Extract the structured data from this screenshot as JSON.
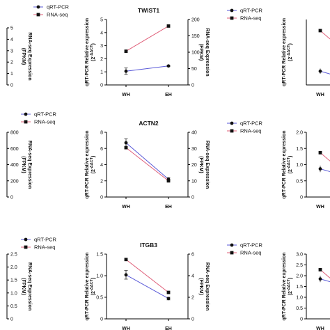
{
  "colors": {
    "qrt": "#5a5ad8",
    "rna": "#e0607a",
    "axis": "#000000",
    "marker": "#111111"
  },
  "chart_data": [
    {
      "type": "line",
      "title": "TWIST1",
      "categories": [
        "WH",
        "EH"
      ],
      "legend": {
        "qrt": "qRT-PCR",
        "rna": "RNA-seq"
      },
      "left_axis": {
        "label": "qRT-PCR Relative expression",
        "sublabel": "(2^-ΔΔCT)",
        "ylim": [
          0,
          5
        ],
        "ticks": [
          "0",
          "1",
          "2",
          "3",
          "4",
          "5"
        ]
      },
      "right_axis": {
        "label": "RNA-seq Expression",
        "sublabel": "(FPKM)",
        "ylim": [
          0,
          200
        ],
        "ticks": [
          "0",
          "50",
          "100",
          "150",
          "200"
        ]
      },
      "series": [
        {
          "name": "qRT-PCR",
          "axis": "left",
          "values": [
            1.05,
            1.45
          ],
          "err": [
            0.25,
            0.05
          ]
        },
        {
          "name": "RNA-seq",
          "axis": "right",
          "values": [
            103,
            180
          ]
        }
      ]
    },
    {
      "type": "line",
      "title": "ACTN2",
      "categories": [
        "WH",
        "EH"
      ],
      "legend": {
        "qrt": "qRT-PCR",
        "rna": "RNA-seq"
      },
      "left_axis": {
        "label": "qRT-PCR Relative expression",
        "sublabel": "(2^-ΔΔCT)",
        "ylim": [
          0,
          8
        ],
        "ticks": [
          "0",
          "2",
          "4",
          "6",
          "8"
        ]
      },
      "right_axis": {
        "label": "RNA-seq Expression",
        "sublabel": "(FPKM)",
        "ylim": [
          0,
          40
        ],
        "ticks": [
          "0",
          "10",
          "20",
          "30",
          "40"
        ]
      },
      "series": [
        {
          "name": "qRT-PCR",
          "axis": "left",
          "values": [
            6.7,
            2.2
          ],
          "err": [
            0.5,
            0.2
          ]
        },
        {
          "name": "RNA-seq",
          "axis": "right",
          "values": [
            30.5,
            10
          ]
        }
      ]
    },
    {
      "type": "line",
      "title": "ITGB3",
      "categories": [
        "WH",
        "EH"
      ],
      "legend": {
        "qrt": "qRT-PCR",
        "rna": "RNA-seq"
      },
      "left_axis": {
        "label": "qRT-PCR Relative expression",
        "sublabel": "(2^-ΔΔCT)",
        "ylim": [
          0,
          1.5
        ],
        "ticks": [
          "0",
          "0.5",
          "1.0",
          "1.5"
        ]
      },
      "right_axis": {
        "label": "RNA-seq Expression",
        "sublabel": "(FPKM)",
        "ylim": [
          0,
          6
        ],
        "ticks": [
          "0",
          "2",
          "4",
          "6"
        ]
      },
      "series": [
        {
          "name": "qRT-PCR",
          "axis": "left",
          "values": [
            1.02,
            0.47
          ],
          "err": [
            0.1,
            0.03
          ]
        },
        {
          "name": "RNA-seq",
          "axis": "right",
          "values": [
            5.5,
            2.45
          ]
        }
      ]
    },
    {
      "type": "line",
      "title": "",
      "partial": "left-cut",
      "categories": [],
      "legend": {
        "qrt": "",
        "rna": ""
      },
      "right_axis": {
        "label": "RNA-seq Expression",
        "sublabel": "(FPKM)",
        "ylim": [
          0,
          5
        ],
        "ticks": [
          "0",
          "1",
          "2",
          "3",
          "4",
          "5"
        ]
      },
      "series": []
    },
    {
      "type": "line",
      "title": "",
      "partial": "left-cut",
      "categories": [],
      "legend": {
        "qrt": "qRT-PCR",
        "rna": "RNA-seq"
      },
      "right_axis": {
        "label": "RNA-seq Expression",
        "sublabel": "(FPKM)",
        "ylim": [
          0,
          800
        ],
        "ticks": [
          "0",
          "200",
          "400",
          "600",
          "800"
        ]
      },
      "series": []
    },
    {
      "type": "line",
      "title": "",
      "partial": "left-cut",
      "categories": [],
      "legend": {
        "qrt": "",
        "rna": ""
      },
      "right_axis": {
        "label": "RNA-seq Expression",
        "sublabel": "(FPKM)",
        "ylim": [
          0,
          2.5
        ],
        "ticks": [
          "0",
          "0.5",
          "1.0",
          "1.5",
          "2.0",
          "2.5"
        ]
      },
      "series": []
    },
    {
      "type": "line",
      "title": "",
      "partial": "right-cut",
      "categories": [
        "WH"
      ],
      "legend": {
        "qrt": "qRT-PCR",
        "rna": "RNA-seq"
      },
      "left_axis": {
        "label": "qRT-PCR Relative expression",
        "sublabel": "(2^-ΔΔCT)",
        "ylim": [
          0,
          5
        ],
        "ticks": [
          "0",
          "1",
          "2",
          "3",
          "4",
          "5"
        ]
      },
      "series": [
        {
          "name": "qRT-PCR",
          "axis": "left",
          "values": [
            1.05
          ],
          "err": [
            0.2
          ]
        },
        {
          "name": "RNA-seq",
          "axis": "left",
          "values": [
            4.15
          ]
        }
      ]
    },
    {
      "type": "line",
      "title": "",
      "partial": "right-cut",
      "categories": [
        "WH"
      ],
      "legend": {
        "qrt": "qRT-PCR",
        "rna": "RNA-seq"
      },
      "left_axis": {
        "label": "qRT-PCR Relative expression",
        "sublabel": "(2^-ΔΔCT)",
        "ylim": [
          0,
          2.0
        ],
        "ticks": [
          "0",
          "0.5",
          "1.0",
          "1.5",
          "2.0"
        ]
      },
      "series": [
        {
          "name": "qRT-PCR",
          "axis": "left",
          "values": [
            0.87
          ],
          "err": [
            0.1
          ]
        },
        {
          "name": "RNA-seq",
          "axis": "left",
          "values": [
            1.37
          ]
        }
      ]
    },
    {
      "type": "line",
      "title": "",
      "partial": "right-cut",
      "categories": [
        "WH"
      ],
      "legend": {
        "qrt": "qRT-PCR",
        "rna": "RNA-seq"
      },
      "left_axis": {
        "label": "qRT-PCR Relative expression",
        "sublabel": "(2^-ΔΔCT)",
        "ylim": [
          0,
          3.0
        ],
        "ticks": [
          "0",
          "0.5",
          "1.0",
          "1.5",
          "2.0",
          "2.5",
          "3.0"
        ]
      },
      "series": [
        {
          "name": "qRT-PCR",
          "axis": "left",
          "values": [
            1.85
          ],
          "err": [
            0.15
          ]
        },
        {
          "name": "RNA-seq",
          "axis": "left",
          "values": [
            2.28
          ]
        }
      ]
    }
  ]
}
